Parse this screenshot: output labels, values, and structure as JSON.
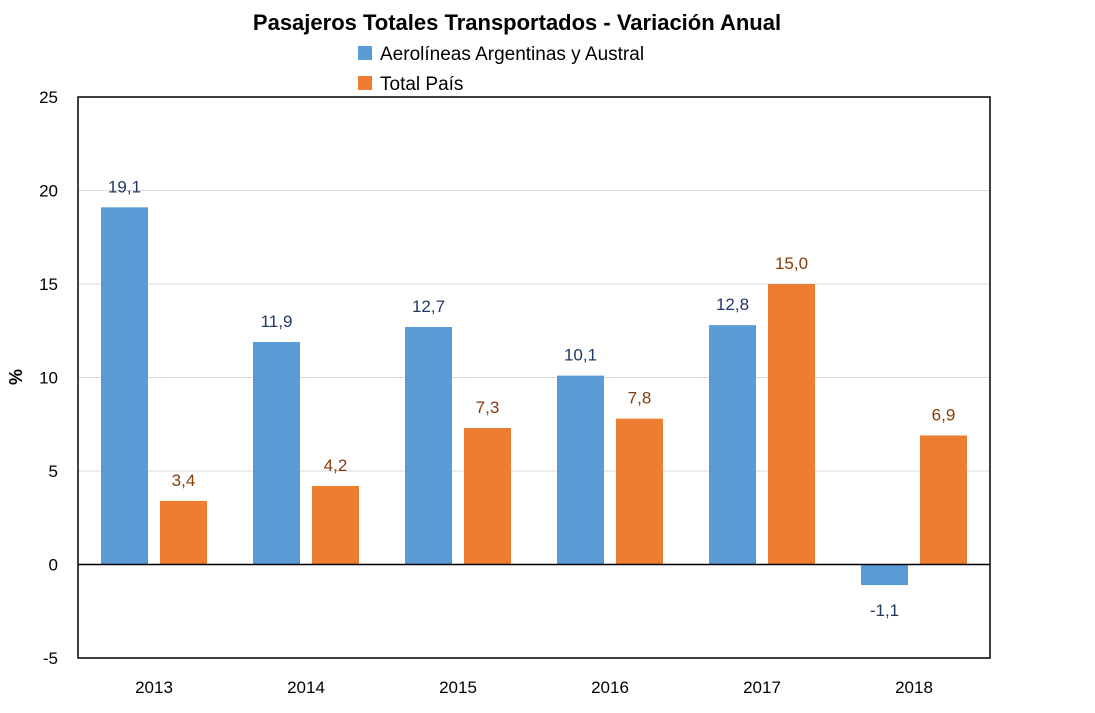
{
  "chart_data": {
    "type": "bar",
    "title": "Pasajeros Totales Transportados - Variación Anual",
    "ylabel": "%",
    "xlabel": "",
    "ylim": [
      -5,
      25
    ],
    "yticks": [
      -5,
      0,
      5,
      10,
      15,
      20,
      25
    ],
    "grid": true,
    "legend_position": "top-center",
    "categories": [
      "2013",
      "2014",
      "2015",
      "2016",
      "2017",
      "2018"
    ],
    "series": [
      {
        "name": "Aerolíneas Argentinas y Austral",
        "color": "#5b9bd5",
        "label_color": "#1f3864",
        "values": [
          19.1,
          11.9,
          12.7,
          10.1,
          12.8,
          -1.1
        ],
        "labels": [
          "19,1",
          "11,9",
          "12,7",
          "10,1",
          "12,8",
          "-1,1"
        ]
      },
      {
        "name": "Total País",
        "color": "#ed7d31",
        "label_color": "#843c0c",
        "values": [
          3.4,
          4.2,
          7.3,
          7.8,
          15.0,
          6.9
        ],
        "labels": [
          "3,4",
          "4,2",
          "7,3",
          "7,8",
          "15,0",
          "6,9"
        ]
      }
    ]
  }
}
